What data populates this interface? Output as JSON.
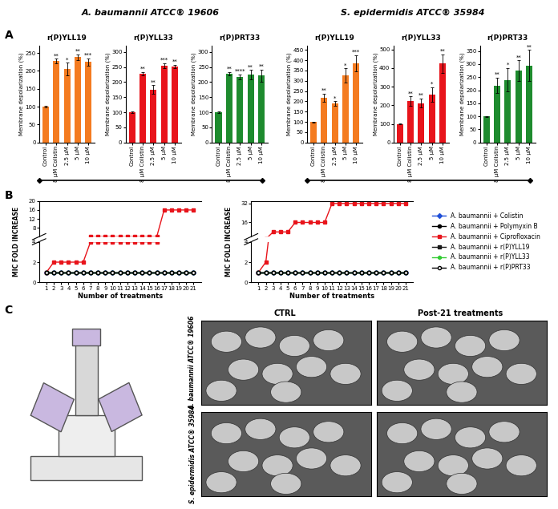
{
  "headers": [
    "A. baumannii ATCC® 19606",
    "S. epidermidis ATCC® 35984"
  ],
  "panel_labels": [
    "A",
    "B",
    "C"
  ],
  "chart_data": [
    {
      "type": "bar",
      "title": "r(P)YLL19",
      "ylabel": "Membrane depolarization (%)",
      "categories": [
        "Control",
        "8 µM Colistin",
        "2.5 µM",
        "5 µM",
        "10 µM"
      ],
      "values": [
        100,
        228,
        205,
        238,
        225
      ],
      "errors": [
        2,
        6,
        18,
        8,
        10
      ],
      "color": "#f47b20",
      "ylim": [
        0,
        270
      ],
      "yticks": [
        0,
        50,
        100,
        150,
        200,
        250
      ],
      "annotations": [
        {
          "category": "8 µM Colistin",
          "text": "**"
        },
        {
          "category": "2.5 µM",
          "text": "*"
        },
        {
          "category": "5 µM",
          "text": "**"
        },
        {
          "category": "10 µM",
          "text": "***"
        }
      ]
    },
    {
      "type": "bar",
      "title": "r(P)YLL33",
      "ylabel": "Membrane depolarization (%)",
      "categories": [
        "Control",
        "8 µM Colistin",
        "2.5 µM",
        "5 µM",
        "10 µM"
      ],
      "values": [
        100,
        228,
        175,
        255,
        252
      ],
      "errors": [
        2,
        6,
        15,
        8,
        5
      ],
      "color": "#e8141b",
      "ylim": [
        0,
        320
      ],
      "yticks": [
        0,
        50,
        100,
        150,
        200,
        250,
        300
      ],
      "annotations": [
        {
          "category": "8 µM Colistin",
          "text": "**"
        },
        {
          "category": "2.5 µM",
          "text": "**"
        },
        {
          "category": "5 µM",
          "text": "***"
        },
        {
          "category": "10 µM",
          "text": "**"
        }
      ]
    },
    {
      "type": "bar",
      "title": "r(P)PRT33",
      "ylabel": "Membrane depolarization (%)",
      "categories": [
        "Control",
        "8 µM Colistin",
        "2.5 µM",
        "5 µM",
        "10 µM"
      ],
      "values": [
        100,
        228,
        218,
        225,
        222
      ],
      "errors": [
        2,
        6,
        8,
        15,
        20
      ],
      "color": "#1e8b2e",
      "ylim": [
        0,
        320
      ],
      "yticks": [
        0,
        50,
        100,
        150,
        200,
        250,
        300
      ],
      "annotations": [
        {
          "category": "8 µM Colistin",
          "text": "**"
        },
        {
          "category": "2.5 µM",
          "text": "****"
        },
        {
          "category": "5 µM",
          "text": "**"
        },
        {
          "category": "10 µM",
          "text": "**"
        }
      ]
    },
    {
      "type": "bar",
      "title": "r(P)YLL19",
      "ylabel": "Membrane depolarization (%)",
      "categories": [
        "Control",
        "8 µM Colistin",
        "2.5 µM",
        "5 µM",
        "10 µM"
      ],
      "values": [
        100,
        218,
        190,
        325,
        385
      ],
      "errors": [
        2,
        20,
        12,
        35,
        40
      ],
      "color": "#f47b20",
      "ylim": [
        0,
        470
      ],
      "yticks": [
        0,
        50,
        100,
        150,
        200,
        250,
        300,
        350,
        400,
        450
      ],
      "annotations": [
        {
          "category": "8 µM Colistin",
          "text": "**"
        },
        {
          "category": "2.5 µM",
          "text": "*"
        },
        {
          "category": "5 µM",
          "text": "*"
        },
        {
          "category": "10 µM",
          "text": "***"
        }
      ]
    },
    {
      "type": "bar",
      "title": "r(P)YLL33",
      "ylabel": "Membrane depolarization (%)",
      "categories": [
        "Control",
        "8 µM Colistin",
        "2.5 µM",
        "5 µM",
        "10 µM"
      ],
      "values": [
        100,
        222,
        212,
        258,
        425
      ],
      "errors": [
        2,
        25,
        25,
        40,
        50
      ],
      "color": "#e8141b",
      "ylim": [
        0,
        520
      ],
      "yticks": [
        0,
        100,
        200,
        300,
        400,
        500
      ],
      "annotations": [
        {
          "category": "8 µM Colistin",
          "text": "**"
        },
        {
          "category": "2.5 µM",
          "text": "**"
        },
        {
          "category": "5 µM",
          "text": "*"
        },
        {
          "category": "10 µM",
          "text": "**"
        }
      ]
    },
    {
      "type": "bar",
      "title": "r(P)PRT33",
      "ylabel": "Membrane depolarization (%)",
      "categories": [
        "Control",
        "8 µM Colistin",
        "2.5 µM",
        "5 µM",
        "10 µM"
      ],
      "values": [
        100,
        218,
        240,
        275,
        295
      ],
      "errors": [
        2,
        30,
        45,
        40,
        60
      ],
      "color": "#1e8b2e",
      "ylim": [
        0,
        370
      ],
      "yticks": [
        0,
        50,
        100,
        150,
        200,
        250,
        300,
        350
      ],
      "annotations": [
        {
          "category": "8 µM Colistin",
          "text": "**"
        },
        {
          "category": "2.5 µM",
          "text": "*"
        },
        {
          "category": "5 µM",
          "text": "**"
        },
        {
          "category": "10 µM",
          "text": "**"
        }
      ]
    },
    {
      "type": "line",
      "xlabel": "Number of treatments",
      "ylabel": "MIC FOLD INCREASE",
      "x": [
        1,
        2,
        3,
        4,
        5,
        6,
        7,
        8,
        9,
        10,
        11,
        12,
        13,
        14,
        15,
        16,
        17,
        18,
        19,
        20,
        21
      ],
      "xlim": [
        0,
        22
      ],
      "xticks": [
        1,
        2,
        3,
        4,
        5,
        6,
        7,
        8,
        9,
        10,
        11,
        12,
        13,
        14,
        15,
        16,
        17,
        18,
        19,
        20,
        21
      ],
      "ylim": [
        0,
        20
      ],
      "yticks": [
        0,
        2,
        4,
        8,
        12,
        16,
        20
      ],
      "series": [
        {
          "name": "A. baumannii + Colistin",
          "color": "#1f4fd8",
          "marker": "diamond",
          "values": [
            1,
            1,
            1,
            1,
            1,
            1,
            1,
            1,
            1,
            1,
            1,
            1,
            1,
            1,
            1,
            1,
            1,
            1,
            1,
            1,
            1
          ]
        },
        {
          "name": "A. baumannii + Polymyxin B",
          "color": "#000000",
          "marker": "circle",
          "values": [
            1,
            1,
            1,
            1,
            1,
            1,
            1,
            1,
            1,
            1,
            1,
            1,
            1,
            1,
            1,
            1,
            1,
            1,
            1,
            1,
            1
          ]
        },
        {
          "name": "A. baumannii + Ciprofloxacin",
          "color": "#e8141b",
          "marker": "square",
          "values": [
            1,
            2,
            2,
            2,
            2,
            2,
            4,
            4,
            4,
            4,
            4,
            4,
            4,
            4,
            4,
            4,
            16,
            16,
            16,
            16,
            16
          ]
        },
        {
          "name": "A. baumannii + r(P)YLL19",
          "color": "#1a1a1a",
          "marker": "square",
          "values": [
            1,
            1,
            1,
            1,
            1,
            1,
            1,
            1,
            1,
            1,
            1,
            1,
            1,
            1,
            1,
            1,
            1,
            1,
            1,
            1,
            1
          ]
        },
        {
          "name": "A. baumannii + r(P)YLL33",
          "color": "#33cc33",
          "marker": "hexagon",
          "values": [
            1,
            1,
            1,
            1,
            1,
            1,
            1,
            1,
            1,
            1,
            1,
            1,
            1,
            1,
            1,
            1,
            1,
            1,
            1,
            1,
            1
          ]
        },
        {
          "name": "A. baumannii + r(P)PRT33",
          "color": "#000000",
          "marker": "open circle",
          "values": [
            1,
            1,
            1,
            1,
            1,
            1,
            1,
            1,
            1,
            1,
            1,
            1,
            1,
            1,
            1,
            1,
            1,
            1,
            1,
            1,
            1
          ]
        }
      ]
    },
    {
      "type": "line",
      "xlabel": "Number of treatments",
      "ylabel": "MIC FOLD INCREASE",
      "x": [
        1,
        2,
        3,
        4,
        5,
        6,
        7,
        8,
        9,
        10,
        11,
        12,
        13,
        14,
        15,
        16,
        17,
        18,
        19,
        20,
        21
      ],
      "xlim": [
        0,
        22
      ],
      "xticks": [
        1,
        2,
        3,
        4,
        5,
        6,
        7,
        8,
        9,
        10,
        11,
        12,
        13,
        14,
        15,
        16,
        17,
        18,
        19,
        20,
        21
      ],
      "ylim": [
        0,
        34
      ],
      "yticks": [
        0,
        2,
        4,
        16,
        32
      ],
      "legend": "right",
      "series": [
        {
          "name": "A. baumannii + Colistin",
          "color": "#1f4fd8",
          "marker": "diamond",
          "values": [
            1,
            1,
            1,
            1,
            1,
            1,
            1,
            1,
            1,
            1,
            1,
            1,
            1,
            1,
            1,
            1,
            1,
            1,
            1,
            1,
            1
          ]
        },
        {
          "name": "A. baumannii + Polymyxin B",
          "color": "#000000",
          "marker": "circle",
          "values": [
            1,
            1,
            1,
            1,
            1,
            1,
            1,
            1,
            1,
            1,
            1,
            1,
            1,
            1,
            1,
            1,
            1,
            1,
            1,
            1,
            1
          ]
        },
        {
          "name": "A. baumannii + Ciprofloxacin",
          "color": "#e8141b",
          "marker": "square",
          "values": [
            1,
            2,
            8,
            8,
            8,
            16,
            16,
            16,
            16,
            16,
            32,
            32,
            32,
            32,
            32,
            32,
            32,
            32,
            32,
            32,
            32
          ]
        },
        {
          "name": "A. baumannii + r(P)YLL19",
          "color": "#1a1a1a",
          "marker": "square",
          "values": [
            1,
            1,
            1,
            1,
            1,
            1,
            1,
            1,
            1,
            1,
            1,
            1,
            1,
            1,
            1,
            1,
            1,
            1,
            1,
            1,
            1
          ]
        },
        {
          "name": "A. baumannii + r(P)YLL33",
          "color": "#33cc33",
          "marker": "hexagon",
          "values": [
            1,
            1,
            1,
            1,
            1,
            1,
            1,
            1,
            1,
            1,
            1,
            1,
            1,
            1,
            1,
            1,
            1,
            1,
            1,
            1,
            1
          ]
        },
        {
          "name": "A. baumannii + r(P)PRT33",
          "color": "#000000",
          "marker": "open circle",
          "values": [
            1,
            1,
            1,
            1,
            1,
            1,
            1,
            1,
            1,
            1,
            1,
            1,
            1,
            1,
            1,
            1,
            1,
            1,
            1,
            1,
            1
          ]
        }
      ]
    }
  ],
  "panel_C": {
    "columns": [
      "CTRL",
      "Post-21 treatments"
    ],
    "rows": [
      "A. baumannii ATCC® 19606",
      "S. epidermidis ATCC® 35984"
    ]
  }
}
